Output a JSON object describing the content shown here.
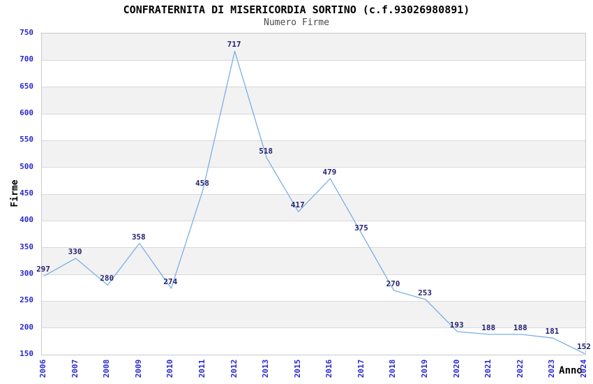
{
  "chart": {
    "title": "CONFRATERNITA DI MISERICORDIA SORTINO (c.f.93026980891)",
    "subtitle": "Numero Firme",
    "ylabel": "Firme",
    "xlabel": "Anno"
  },
  "chart_data": {
    "type": "line",
    "title": "CONFRATERNITA DI MISERICORDIA SORTINO (c.f.93026980891)",
    "subtitle": "Numero Firme",
    "xlabel": "Anno",
    "ylabel": "Firme",
    "categories": [
      "2006",
      "2007",
      "2008",
      "2009",
      "2010",
      "2011",
      "2012",
      "2013",
      "2015",
      "2016",
      "2017",
      "2018",
      "2019",
      "2020",
      "2021",
      "2022",
      "2023",
      "2024"
    ],
    "values": [
      297,
      330,
      280,
      358,
      274,
      458,
      717,
      518,
      417,
      479,
      375,
      270,
      253,
      193,
      188,
      188,
      181,
      152
    ],
    "data_labels_visible": true,
    "ylim": [
      150,
      750
    ],
    "yticks": [
      150,
      200,
      250,
      300,
      350,
      400,
      450,
      500,
      550,
      600,
      650,
      700,
      750
    ],
    "grid": "horizontal-bands",
    "legend_position": "none",
    "markers": "none",
    "colors": {
      "line": "#7aafe6",
      "tick_label": "#2828cc",
      "data_label": "#232370",
      "band_gray": "#f2f2f2",
      "band_white": "#ffffff",
      "grid_line": "#d9d9d9",
      "plot_border": "#c9c9c9",
      "title": "#000000",
      "subtitle": "#4a4a4a",
      "axis_title": "#000000"
    }
  }
}
